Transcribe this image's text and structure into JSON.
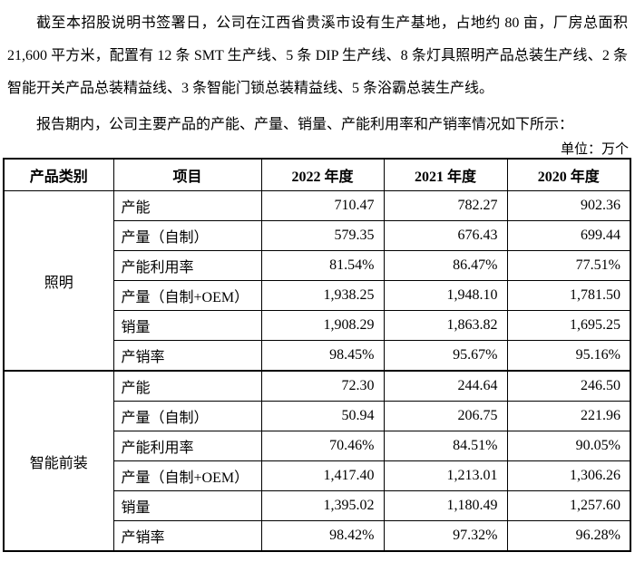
{
  "document": {
    "paragraph1": "截至本招股说明书签署日，公司在江西省贵溪市设有生产基地，占地约 80 亩，厂房总面积 21,600 平方米，配置有 12 条 SMT 生产线、5 条 DIP 生产线、8 条灯具照明产品总装生产线、2 条智能开关产品总装精益线、3 条智能门锁总装精益线、5 条浴霸总装生产线。",
    "paragraph2": "报告期内，公司主要产品的产能、产量、销量、产能利用率和产销率情况如下所示：",
    "unit_label": "单位：万个"
  },
  "chart_data": {
    "type": "table",
    "title": "公司主要产品的产能、产量、销量、产能利用率和产销率情况",
    "unit": "万个",
    "columns": [
      "产品类别",
      "项目",
      "2022 年度",
      "2021 年度",
      "2020 年度"
    ],
    "groups": [
      {
        "category": "照明",
        "rows": [
          {
            "item": "产能",
            "values": [
              "710.47",
              "782.27",
              "902.36"
            ]
          },
          {
            "item": "产量（自制）",
            "values": [
              "579.35",
              "676.43",
              "699.44"
            ]
          },
          {
            "item": "产能利用率",
            "values": [
              "81.54%",
              "86.47%",
              "77.51%"
            ]
          },
          {
            "item": "产量（自制+OEM）",
            "values": [
              "1,938.25",
              "1,948.10",
              "1,781.50"
            ]
          },
          {
            "item": "销量",
            "values": [
              "1,908.29",
              "1,863.82",
              "1,695.25"
            ]
          },
          {
            "item": "产销率",
            "values": [
              "98.45%",
              "95.67%",
              "95.16%"
            ]
          }
        ]
      },
      {
        "category": "智能前装",
        "rows": [
          {
            "item": "产能",
            "values": [
              "72.30",
              "244.64",
              "246.50"
            ]
          },
          {
            "item": "产量（自制）",
            "values": [
              "50.94",
              "206.75",
              "221.96"
            ]
          },
          {
            "item": "产能利用率",
            "values": [
              "70.46%",
              "84.51%",
              "90.05%"
            ]
          },
          {
            "item": "产量（自制+OEM）",
            "values": [
              "1,417.40",
              "1,213.01",
              "1,306.26"
            ]
          },
          {
            "item": "销量",
            "values": [
              "1,395.02",
              "1,180.49",
              "1,257.60"
            ]
          },
          {
            "item": "产销率",
            "values": [
              "98.42%",
              "97.32%",
              "96.28%"
            ]
          }
        ]
      }
    ]
  }
}
